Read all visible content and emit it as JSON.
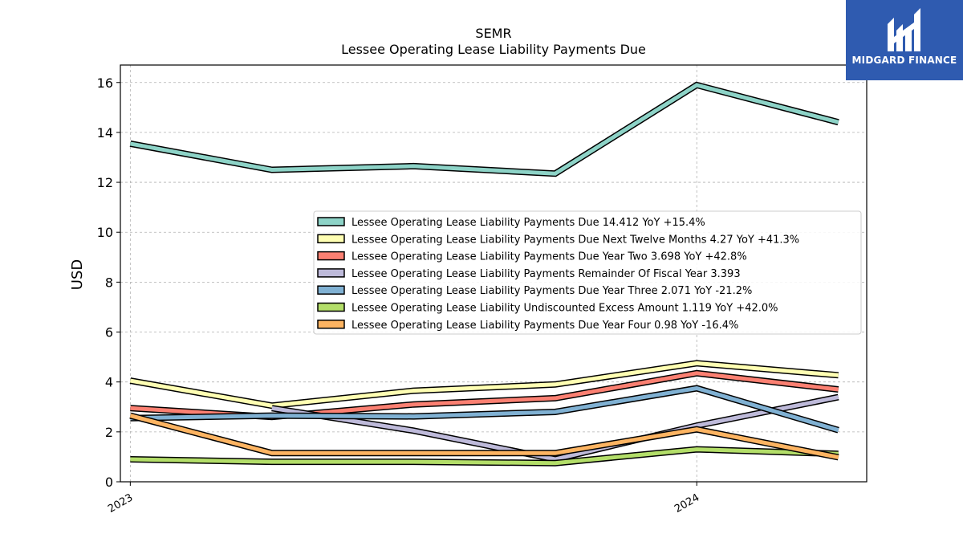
{
  "brand": {
    "name": "MIDGARD FINANCE",
    "bg": "#2f5bb0"
  },
  "chart_data": {
    "type": "line",
    "title": "SEMR",
    "subtitle": "Lessee Operating Lease Liability Payments Due",
    "ylabel": "USD",
    "xlabel": "",
    "ylim": [
      0,
      16.7
    ],
    "yticks": [
      0,
      2,
      4,
      6,
      8,
      10,
      12,
      14,
      16
    ],
    "xlim": [
      -0.07,
      5.2
    ],
    "xticks": [
      {
        "label": "2023",
        "x": 0
      },
      {
        "label": "2024",
        "x": 4
      }
    ],
    "x": [
      0,
      1,
      2,
      3,
      4,
      5
    ],
    "grid": true,
    "legend_position": "center-right",
    "series": [
      {
        "name": "Lessee Operating Lease Liability Payments Due",
        "legend": "Lessee Operating Lease Liability Payments Due  14.412 YoY +15.4%",
        "color": "#8dd3c7",
        "values": [
          13.55,
          12.5,
          12.65,
          12.35,
          15.9,
          14.41
        ]
      },
      {
        "name": "Lessee Operating Lease Liability Payments Due Next Twelve Months",
        "legend": "Lessee Operating Lease Liability Payments Due Next Twelve Months  4.27 YoY +41.3%",
        "color": "#ffffb3",
        "values": [
          4.05,
          3.05,
          3.65,
          3.9,
          4.75,
          4.27
        ]
      },
      {
        "name": "Lessee Operating Lease Liability Payments Due Year Two",
        "legend": "Lessee Operating Lease Liability Payments Due Year Two  3.698 YoY +42.8%",
        "color": "#fb8072",
        "values": [
          2.95,
          2.6,
          3.1,
          3.35,
          4.35,
          3.7
        ]
      },
      {
        "name": "Lessee Operating Lease Liability Payments Remainder Of Fiscal Year",
        "legend": "Lessee Operating Lease Liability Payments Remainder Of Fiscal Year  3.393",
        "color": "#bebada",
        "values": [
          null,
          2.95,
          2.05,
          0.9,
          2.25,
          3.39
        ]
      },
      {
        "name": "Lessee Operating Lease Liability Payments Due Year Three",
        "legend": "Lessee Operating Lease Liability Payments Due Year Three  2.071 YoY -21.2%",
        "color": "#80b1d3",
        "values": [
          2.55,
          2.65,
          2.62,
          2.8,
          3.75,
          2.07
        ]
      },
      {
        "name": "Lessee Operating Lease Liability Undiscounted Excess Amount",
        "legend": "Lessee Operating Lease Liability Undiscounted Excess Amount  1.119 YoY +42.0%",
        "color": "#b3de69",
        "values": [
          0.9,
          0.8,
          0.8,
          0.75,
          1.3,
          1.12
        ]
      },
      {
        "name": "Lessee Operating Lease Liability Payments Due Year Four",
        "legend": "Lessee Operating Lease Liability Payments Due Year Four  0.98 YoY -16.4%",
        "color": "#fdb462",
        "values": [
          2.65,
          1.15,
          1.15,
          1.15,
          2.1,
          0.98
        ]
      }
    ]
  }
}
